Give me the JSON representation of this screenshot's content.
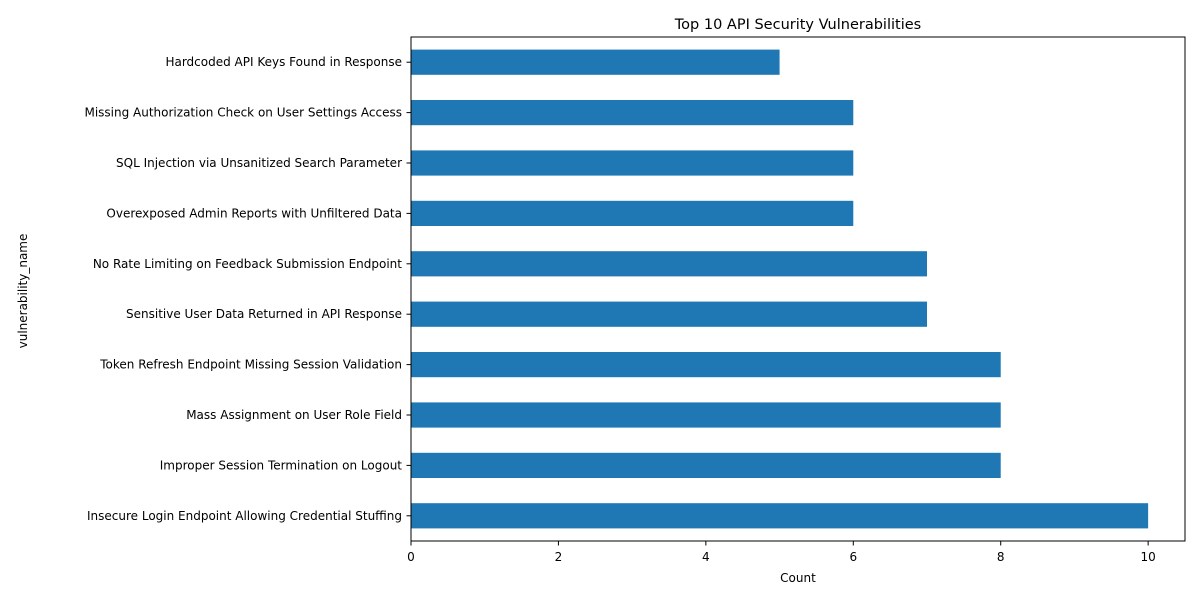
{
  "chart_data": {
    "type": "bar",
    "orientation": "horizontal",
    "title": "Top 10 API Security Vulnerabilities",
    "xlabel": "Count",
    "ylabel": "vulnerability_name",
    "xlim": [
      0,
      10.5
    ],
    "xticks": [
      0,
      2,
      4,
      6,
      8,
      10
    ],
    "grid": false,
    "bar_color": "#1f77b4",
    "categories": [
      "Insecure Login Endpoint Allowing Credential Stuffing",
      "Improper Session Termination on Logout",
      "Mass Assignment on User Role Field",
      "Token Refresh Endpoint Missing Session Validation",
      "Sensitive User Data Returned in API Response",
      "No Rate Limiting on Feedback Submission Endpoint",
      "Overexposed Admin Reports with Unfiltered Data",
      "SQL Injection via Unsanitized Search Parameter",
      "Missing Authorization Check on User Settings Access",
      "Hardcoded API Keys Found in Response"
    ],
    "values": [
      10,
      8,
      8,
      8,
      7,
      7,
      6,
      6,
      6,
      5
    ]
  }
}
